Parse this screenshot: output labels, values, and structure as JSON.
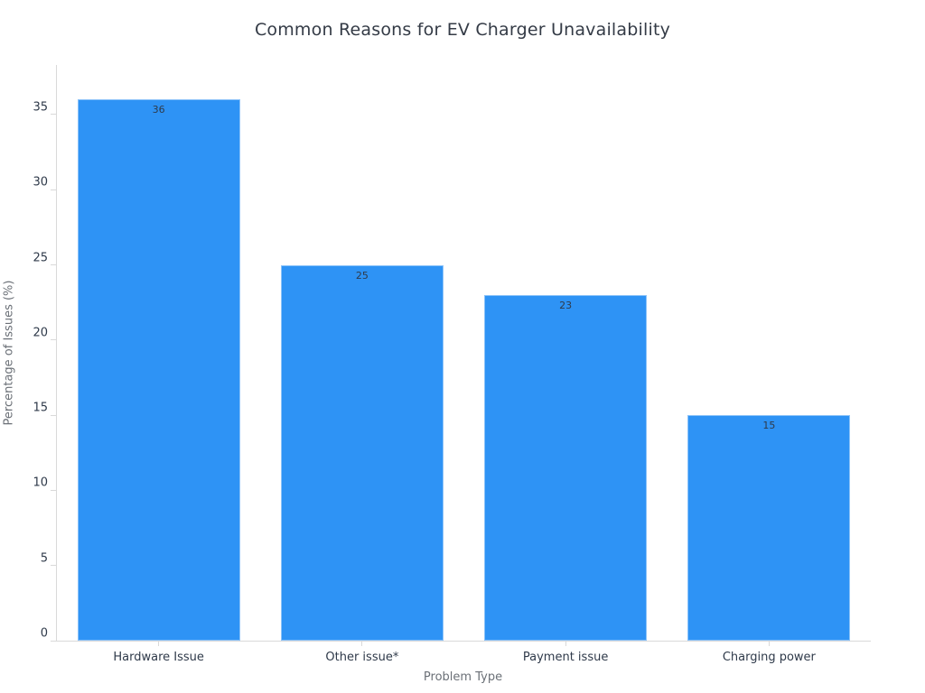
{
  "chart_data": {
    "type": "bar",
    "title": "Common Reasons for EV Charger Unavailability",
    "xlabel": "Problem Type",
    "ylabel": "Percentage of Issues (%)",
    "categories": [
      "Hardware Issue",
      "Other issue*",
      "Payment issue",
      "Charging power"
    ],
    "values": [
      36,
      25,
      23,
      15
    ],
    "value_labels": [
      "36",
      "25",
      "23",
      "15"
    ],
    "ylim": [
      0,
      38.3
    ],
    "yticks": [
      0,
      5,
      10,
      15,
      20,
      25,
      30,
      35
    ],
    "grid": false,
    "legend": "none",
    "bar_width_fraction": 0.8,
    "colors": {
      "bar": "#2e93f5",
      "title_text": "#343b46",
      "tick_text": "#2f3a4a",
      "value_label_text": "#2f3a4a",
      "axis_title_text": "#6b7077",
      "axis_line": "#d9d9d9",
      "background": "#ffffff"
    }
  }
}
